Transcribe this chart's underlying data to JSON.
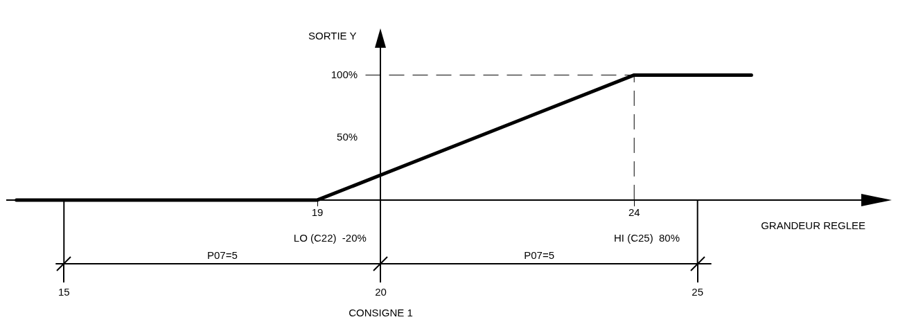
{
  "chart_data": {
    "type": "line",
    "xlabel": "GRANDEUR REGLEE",
    "ylabel": "SORTIE Y",
    "x": [
      14.25,
      19,
      24,
      25.85
    ],
    "series": [
      {
        "color": "#000000",
        "values": [
          0,
          0,
          100,
          100
        ]
      }
    ],
    "xlim": [
      14.1,
      28
    ],
    "xticks": [
      19,
      24
    ],
    "x2lim": [
      14.1,
      28
    ],
    "x2ticks": [
      15,
      20,
      25
    ],
    "ylim": [
      -51,
      134
    ],
    "yticks": [
      {
        "value": 50,
        "label": "50%"
      },
      {
        "value": 100,
        "label": "100%"
      }
    ],
    "ref_lines": [
      {
        "axis": "y",
        "value": 100,
        "line_style": "dashed"
      },
      {
        "axis": "x",
        "value": 24,
        "line_style": "dashed"
      },
      {
        "axis": "x",
        "value": 15,
        "line_style": "solid"
      },
      {
        "axis": "x",
        "value": 25,
        "line_style": "solid"
      }
    ],
    "annotations": [
      "LO (C22)  -20%",
      "HI (C25)  80%",
      "P07=5",
      "P07=5",
      "CONSIGNE 1"
    ],
    "grid": false,
    "legend": false,
    "marker": "none",
    "line_style": "solid"
  }
}
